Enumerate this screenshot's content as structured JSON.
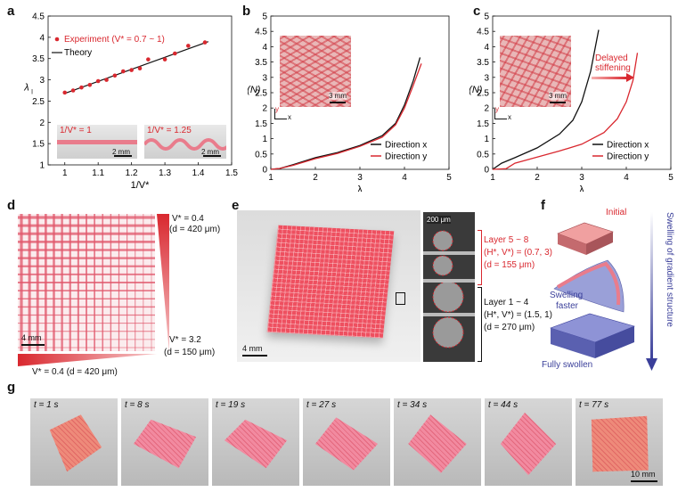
{
  "panels": {
    "a": "a",
    "b": "b",
    "c": "c",
    "d": "d",
    "e": "e",
    "f": "f",
    "g": "g"
  },
  "chart_data": [
    {
      "id": "a",
      "type": "scatter",
      "xlabel": "1/V*",
      "ylabel": "λ",
      "ylabel_sub": "l",
      "xlim": [
        0.95,
        1.5
      ],
      "ylim": [
        1,
        4.5
      ],
      "xticks": [
        "1",
        "1.1",
        "1.2",
        "1.3",
        "1.4",
        "1.5"
      ],
      "yticks": [
        "1",
        "1.5",
        "2",
        "2.5",
        "3",
        "3.5",
        "4",
        "4.5"
      ],
      "legend_position": "top-left",
      "legend": [
        "Experiment (V* = 0.7 ~ 1)",
        "Theory"
      ],
      "series": [
        {
          "name": "Experiment (V* = 0.7 ~ 1)",
          "color": "#d9282f",
          "x": [
            1.0,
            1.025,
            1.05,
            1.075,
            1.1,
            1.125,
            1.15,
            1.175,
            1.2,
            1.225,
            1.25,
            1.3,
            1.33,
            1.37,
            1.42
          ],
          "y": [
            2.7,
            2.75,
            2.82,
            2.88,
            2.97,
            3.0,
            3.1,
            3.2,
            3.23,
            3.27,
            3.48,
            3.48,
            3.62,
            3.8,
            3.88
          ]
        },
        {
          "name": "Theory",
          "color": "#111111",
          "x": [
            1.0,
            1.43
          ],
          "y": [
            2.68,
            3.9
          ]
        }
      ],
      "insets": [
        {
          "label": "1/V* = 1",
          "scale": "2 mm"
        },
        {
          "label": "1/V* = 1.25",
          "scale": "2 mm"
        }
      ]
    },
    {
      "id": "b",
      "type": "line",
      "xlabel": "λ",
      "ylabel": "F (N)",
      "xlim": [
        1,
        5
      ],
      "ylim": [
        0,
        5
      ],
      "xticks": [
        "1",
        "2",
        "3",
        "4",
        "5"
      ],
      "yticks": [
        "0",
        "0.5",
        "1",
        "1.5",
        "2",
        "2.5",
        "3",
        "3.5",
        "4",
        "4.5",
        "5"
      ],
      "legend_position": "bottom-right",
      "series": [
        {
          "name": "Direction x",
          "color": "#111111",
          "x": [
            1.0,
            1.2,
            1.5,
            2.0,
            2.5,
            3.0,
            3.5,
            3.8,
            4.0,
            4.2,
            4.35
          ],
          "y": [
            0.0,
            0.03,
            0.15,
            0.38,
            0.55,
            0.78,
            1.1,
            1.5,
            2.1,
            2.9,
            3.65
          ]
        },
        {
          "name": "Direction y",
          "color": "#d9282f",
          "x": [
            1.0,
            1.2,
            1.5,
            2.0,
            2.5,
            3.0,
            3.5,
            3.8,
            4.0,
            4.2,
            4.38
          ],
          "y": [
            0.0,
            0.03,
            0.13,
            0.35,
            0.52,
            0.75,
            1.05,
            1.45,
            2.0,
            2.75,
            3.45
          ]
        }
      ],
      "inset": {
        "scale": "3 mm",
        "axes": [
          "y",
          "x"
        ]
      }
    },
    {
      "id": "c",
      "type": "line",
      "xlabel": "λ",
      "ylabel": "F (N)",
      "xlim": [
        1,
        5
      ],
      "ylim": [
        0,
        5
      ],
      "xticks": [
        "1",
        "2",
        "3",
        "4",
        "5"
      ],
      "yticks": [
        "0",
        "0.5",
        "1",
        "1.5",
        "2",
        "2.5",
        "3",
        "3.5",
        "4",
        "4.5",
        "5"
      ],
      "legend_position": "bottom-right",
      "annotation": "Delayed stiffening",
      "series": [
        {
          "name": "Direction x",
          "color": "#111111",
          "x": [
            1.0,
            1.2,
            1.5,
            2.0,
            2.5,
            2.8,
            3.0,
            3.2,
            3.38
          ],
          "y": [
            0.0,
            0.2,
            0.38,
            0.7,
            1.15,
            1.6,
            2.2,
            3.2,
            4.55
          ]
        },
        {
          "name": "Direction y",
          "color": "#d9282f",
          "x": [
            1.0,
            1.3,
            1.5,
            2.0,
            2.5,
            3.0,
            3.5,
            3.8,
            4.0,
            4.15,
            4.25
          ],
          "y": [
            0.0,
            0.02,
            0.2,
            0.4,
            0.6,
            0.82,
            1.2,
            1.65,
            2.2,
            2.9,
            3.8
          ]
        }
      ],
      "inset": {
        "scale": "3 mm",
        "axes": [
          "y",
          "x"
        ]
      }
    }
  ],
  "panel_d": {
    "top_label_1": "V* = 0.4",
    "top_label_2": "(d = 420 μm)",
    "bottom_label_1": "V* = 3.2",
    "bottom_label_2": "(d = 150 μm)",
    "axis_label": "V* = 0.4 (d = 420 μm)",
    "scale": "4 mm"
  },
  "panel_e": {
    "scale_main": "4 mm",
    "scale_zoom": "200 μm",
    "layer_top_1": "Layer 5 ~ 8",
    "layer_top_2": "(H*, V*) = (0.7, 3)",
    "layer_top_3": "(d = 155 μm)",
    "layer_bot_1": "Layer 1 ~ 4",
    "layer_bot_2": "(H*, V*) = (1.5, 1)",
    "layer_bot_3": "(d = 270 μm)"
  },
  "panel_f": {
    "initial": "Initial",
    "swelling_faster_1": "Swelling",
    "swelling_faster_2": "faster",
    "fully": "Fully swollen",
    "arrow_label": "Swelling of gradient structure"
  },
  "panel_g": {
    "frames": [
      "t = 1 s",
      "t = 8 s",
      "t = 19 s",
      "t = 27 s",
      "t = 34 s",
      "t = 44 s",
      "t = 77 s"
    ],
    "scale": "10 mm"
  },
  "colors": {
    "red": "#d9282f",
    "blue": "#3a3f9a",
    "pink": "#f0a0a8",
    "text": "#111111"
  }
}
